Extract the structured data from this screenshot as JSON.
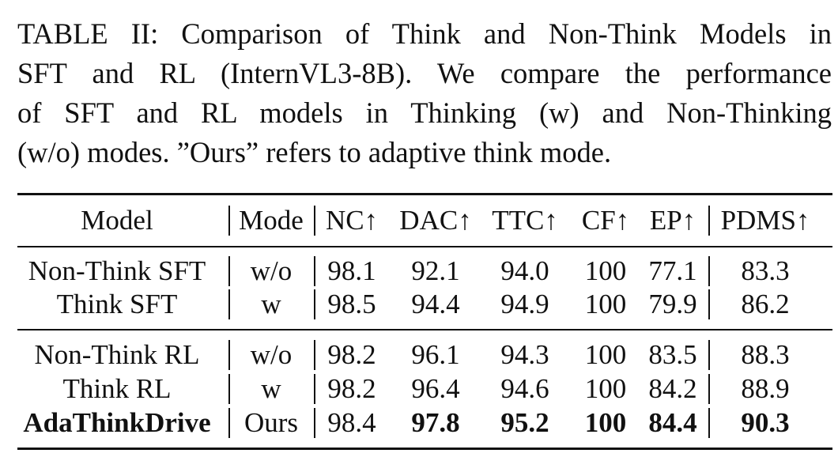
{
  "caption": {
    "lines": [
      "TABLE II: Comparison of Think and Non-Think Models in",
      "SFT and RL (InternVL3-8B). We compare the performance",
      "of SFT and RL models in Thinking (w) and Non-Thinking",
      "(w/o) modes. ”Ours” refers to adaptive think mode."
    ]
  },
  "table": {
    "headers": [
      "Model",
      "Mode",
      "NC↑",
      "DAC↑",
      "TTC↑",
      "CF↑",
      "EP↑",
      "PDMS↑"
    ],
    "groups": [
      {
        "rows": [
          {
            "model": "Non-Think SFT",
            "mode": "w/o",
            "values": [
              "98.1",
              "92.1",
              "94.0",
              "100",
              "77.1",
              "83.3"
            ],
            "bold": [
              false,
              false,
              false,
              false,
              false,
              false,
              false,
              false
            ]
          },
          {
            "model": "Think SFT",
            "mode": "w",
            "values": [
              "98.5",
              "94.4",
              "94.9",
              "100",
              "79.9",
              "86.2"
            ],
            "bold": [
              false,
              false,
              false,
              false,
              false,
              false,
              false,
              false
            ]
          }
        ]
      },
      {
        "rows": [
          {
            "model": "Non-Think RL",
            "mode": "w/o",
            "values": [
              "98.2",
              "96.1",
              "94.3",
              "100",
              "83.5",
              "88.3"
            ],
            "bold": [
              false,
              false,
              false,
              false,
              false,
              false,
              false,
              false
            ]
          },
          {
            "model": "Think RL",
            "mode": "w",
            "values": [
              "98.2",
              "96.4",
              "94.6",
              "100",
              "84.2",
              "88.9"
            ],
            "bold": [
              false,
              false,
              false,
              false,
              false,
              false,
              false,
              false
            ]
          },
          {
            "model": "AdaThinkDrive",
            "mode": "Ours",
            "values": [
              "98.4",
              "97.8",
              "95.2",
              "100",
              "84.4",
              "90.3"
            ],
            "bold": [
              true,
              false,
              false,
              true,
              true,
              true,
              true,
              true
            ]
          }
        ]
      }
    ]
  }
}
